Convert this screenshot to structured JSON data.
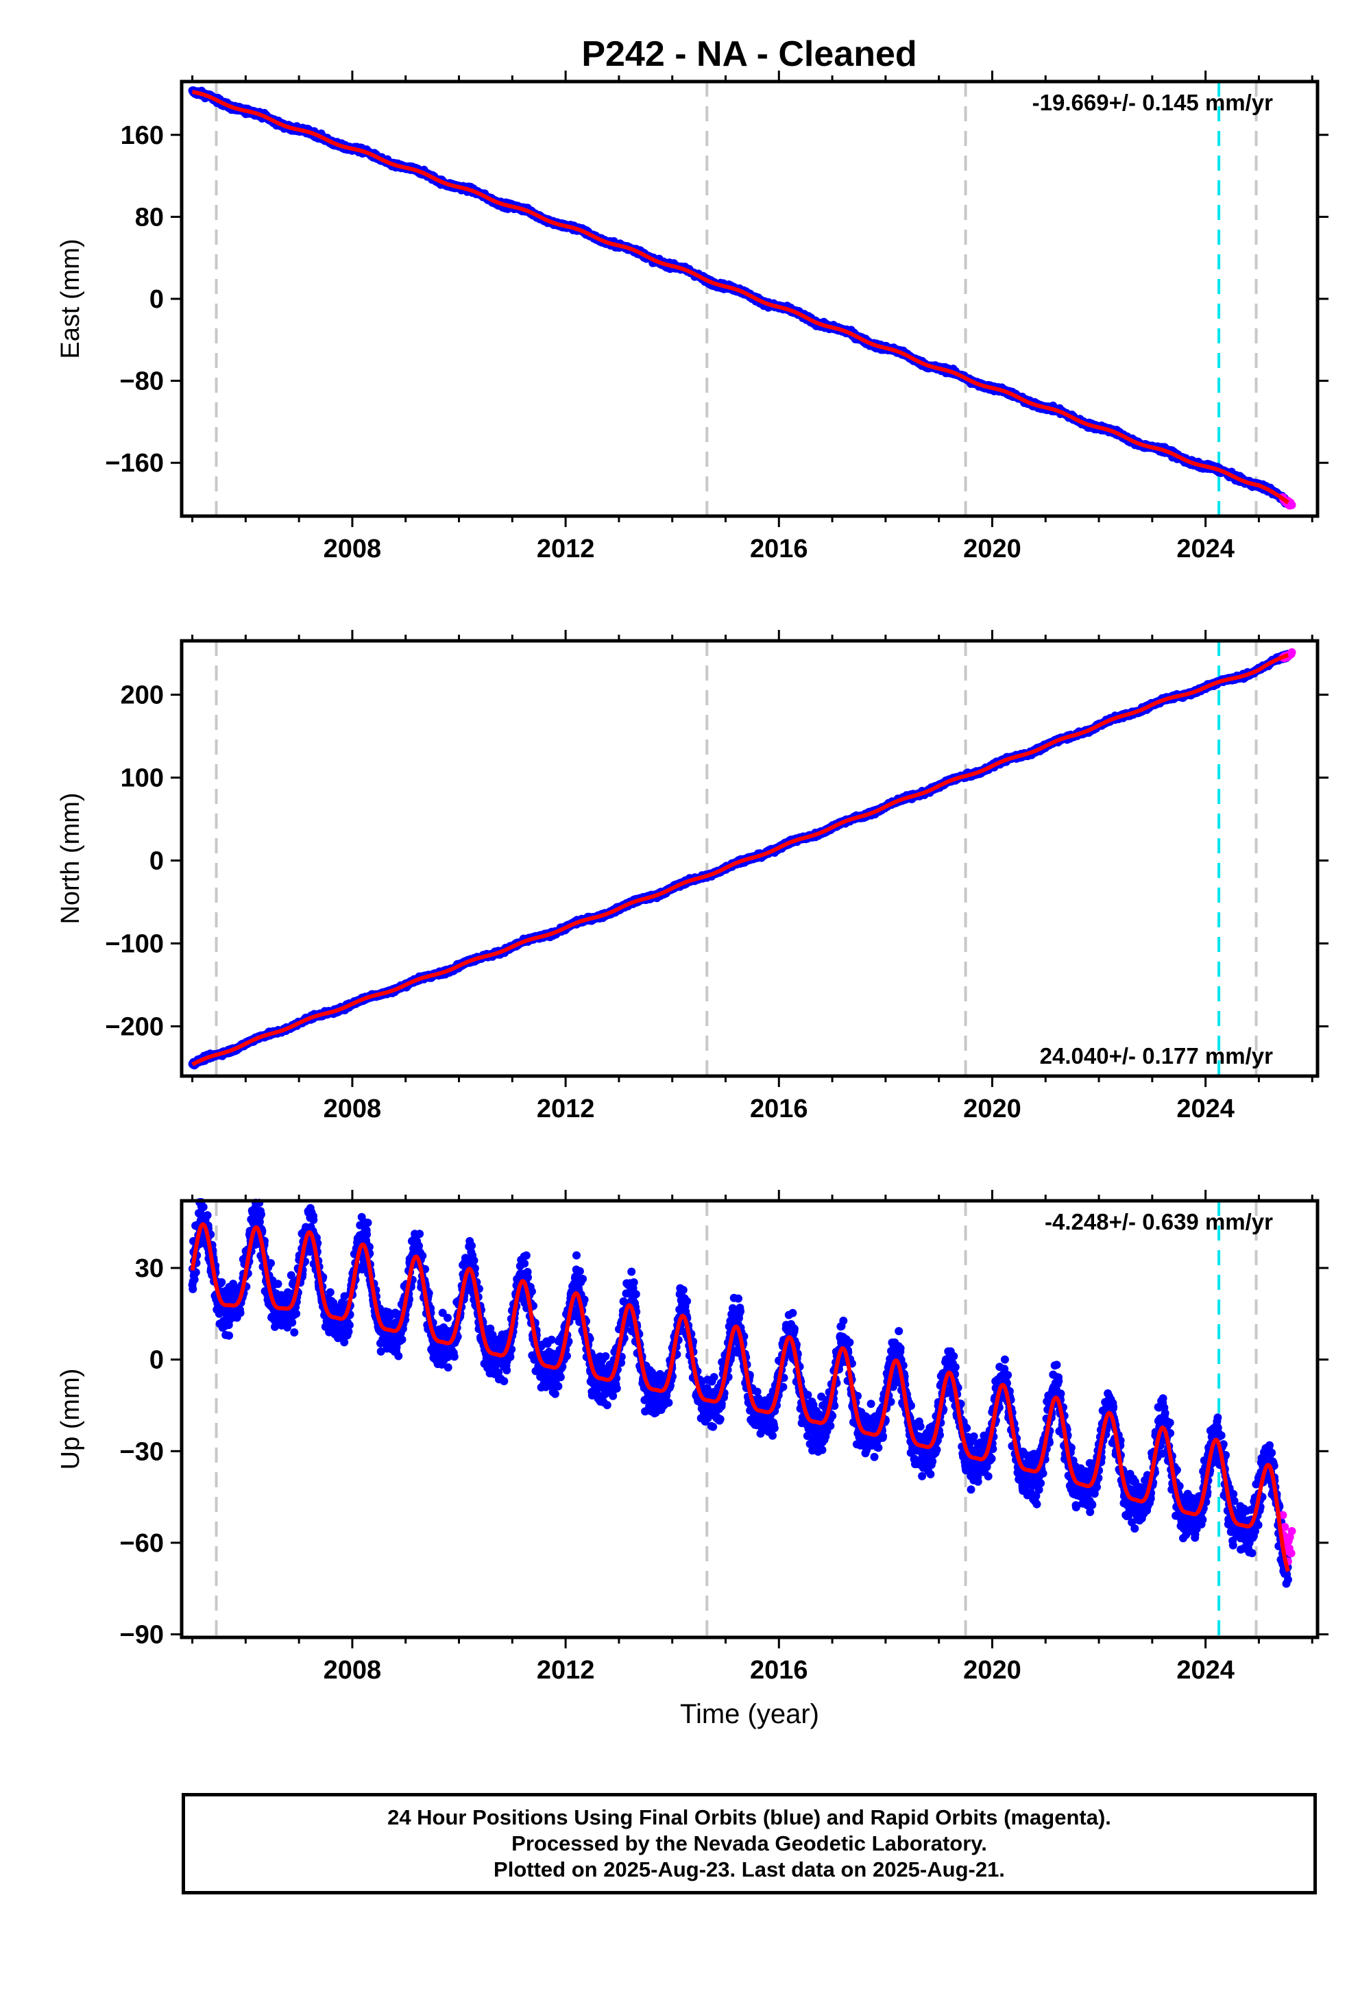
{
  "title": "P242  - NA - Cleaned",
  "colors": {
    "final_orbits": "#0000ff",
    "rapid_orbits": "#ff00ff",
    "model_fit": "#ff0000",
    "event_dashed": "#c8c8c8",
    "antenna_dashed": "#00e5ee"
  },
  "chart_data": [
    {
      "type": "scatter",
      "component": "East",
      "ylabel": "East (mm)",
      "xlabel": "",
      "xlim": [
        2004.8,
        2026.1
      ],
      "ylim": [
        -212,
        212
      ],
      "yticks": [
        -160,
        -80,
        0,
        80,
        160
      ],
      "xticks": [
        2008,
        2012,
        2016,
        2020,
        2024
      ],
      "rate_label": "-19.669+/- 0.145 mm/yr",
      "rate_label_position": "top-right",
      "series": [
        {
          "x": [
            2005.0,
            2007.0,
            2009.0,
            2011.0,
            2013.0,
            2015.0,
            2017.0,
            2019.0,
            2021.0,
            2023.0,
            2025.0,
            2025.6
          ],
          "values": [
            202,
            165,
            128,
            90,
            52,
            12,
            -28,
            -68,
            -106,
            -145,
            -182,
            -200
          ]
        }
      ]
    },
    {
      "type": "scatter",
      "component": "North",
      "ylabel": "North (mm)",
      "xlabel": "",
      "xlim": [
        2004.8,
        2026.1
      ],
      "ylim": [
        -260,
        265
      ],
      "yticks": [
        -200,
        -100,
        0,
        100,
        200
      ],
      "xticks": [
        2008,
        2012,
        2016,
        2020,
        2024
      ],
      "rate_label": "24.040+/- 0.177 mm/yr",
      "rate_label_position": "bottom-right",
      "series": [
        {
          "x": [
            2005.0,
            2007.0,
            2009.0,
            2011.0,
            2013.0,
            2015.0,
            2017.0,
            2019.0,
            2021.0,
            2023.0,
            2025.0,
            2025.6
          ],
          "values": [
            -246,
            -196,
            -150,
            -104,
            -58,
            -9,
            40,
            90,
            138,
            188,
            230,
            250
          ]
        }
      ]
    },
    {
      "type": "scatter",
      "component": "Up",
      "ylabel": "Up (mm)",
      "xlabel": "Time (year)",
      "xlim": [
        2004.8,
        2026.1
      ],
      "ylim": [
        -91,
        52
      ],
      "yticks": [
        -90,
        -60,
        -30,
        0,
        30
      ],
      "xticks": [
        2008,
        2012,
        2016,
        2020,
        2024
      ],
      "rate_label": "-4.248+/- 0.639 mm/yr",
      "rate_label_position": "top-right",
      "series": [
        {
          "x": [
            2005.0,
            2007.0,
            2009.0,
            2011.0,
            2013.0,
            2015.0,
            2017.0,
            2019.0,
            2021.0,
            2023.0,
            2025.0,
            2025.6
          ],
          "values": [
            28,
            26,
            18,
            10,
            2,
            -5,
            -12,
            -20,
            -28,
            -38,
            -46,
            -62
          ]
        }
      ]
    }
  ],
  "event_lines_x": [
    2005.45,
    2014.65,
    2019.5,
    2024.95
  ],
  "antenna_line_x": [
    2024.25
  ],
  "caption": {
    "line1": "24 Hour Positions Using Final Orbits (blue) and Rapid Orbits (magenta).",
    "line2": "Processed by the Nevada Geodetic Laboratory.",
    "line3": "Plotted on 2025-Aug-23. Last data on 2025-Aug-21."
  }
}
